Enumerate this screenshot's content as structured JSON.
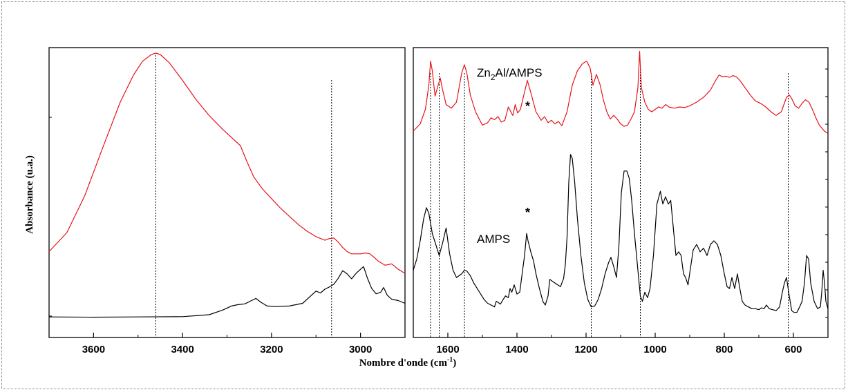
{
  "chart_data": [
    {
      "type": "line",
      "panel": "left",
      "xlim": [
        3700,
        2900
      ],
      "x_ticks": [
        3600,
        3400,
        3200,
        3000
      ],
      "ylabel": "Absorbance (u.a.)",
      "grid": false,
      "reference_lines_x": [
        3460,
        3065
      ],
      "series": [
        {
          "color": "#e8121a",
          "x": [
            3700,
            3660,
            3620,
            3580,
            3540,
            3510,
            3490,
            3470,
            3460,
            3450,
            3430,
            3400,
            3370,
            3340,
            3310,
            3290,
            3270,
            3255,
            3240,
            3220,
            3200,
            3180,
            3160,
            3140,
            3120,
            3100,
            3080,
            3070,
            3060,
            3050,
            3040,
            3030,
            3020,
            3010,
            3000,
            2990,
            2980,
            2970,
            2960,
            2945,
            2930,
            2915,
            2900
          ],
          "y": [
            0.27,
            0.34,
            0.475,
            0.65,
            0.82,
            0.92,
            0.97,
            0.995,
            1.0,
            0.995,
            0.965,
            0.9,
            0.83,
            0.77,
            0.72,
            0.69,
            0.66,
            0.6,
            0.545,
            0.5,
            0.465,
            0.43,
            0.4,
            0.37,
            0.345,
            0.325,
            0.312,
            0.318,
            0.32,
            0.305,
            0.285,
            0.27,
            0.262,
            0.262,
            0.262,
            0.265,
            0.263,
            0.25,
            0.235,
            0.22,
            0.225,
            0.205,
            0.19
          ]
        },
        {
          "color": "#000000",
          "x": [
            3700,
            3600,
            3500,
            3400,
            3340,
            3310,
            3290,
            3275,
            3260,
            3245,
            3235,
            3225,
            3210,
            3190,
            3160,
            3130,
            3110,
            3100,
            3090,
            3080,
            3070,
            3060,
            3050,
            3040,
            3030,
            3020,
            3010,
            3000,
            2993,
            2985,
            2975,
            2965,
            2955,
            2948,
            2940,
            2930,
            2915,
            2900
          ],
          "y": [
            0.03,
            0.029,
            0.03,
            0.031,
            0.038,
            0.055,
            0.07,
            0.075,
            0.078,
            0.09,
            0.098,
            0.085,
            0.07,
            0.068,
            0.07,
            0.08,
            0.11,
            0.125,
            0.118,
            0.132,
            0.14,
            0.15,
            0.172,
            0.2,
            0.188,
            0.17,
            0.19,
            0.205,
            0.215,
            0.175,
            0.135,
            0.115,
            0.12,
            0.138,
            0.11,
            0.095,
            0.09,
            0.08
          ]
        }
      ]
    },
    {
      "type": "line",
      "panel": "right",
      "xlim": [
        1700,
        500
      ],
      "x_ticks": [
        1600,
        1400,
        1200,
        1000,
        800,
        600
      ],
      "grid": false,
      "reference_lines_x": [
        1650,
        1625,
        1552,
        1185,
        1043,
        615
      ],
      "annotations": [
        {
          "label_parts": [
            "Zn",
            "2",
            "Al/AMPS"
          ],
          "sub_index": 1
        },
        {
          "label": "*",
          "at_x": 1370,
          "series": "Zn2Al/AMPS"
        },
        {
          "label": "AMPS"
        },
        {
          "label": "*",
          "at_x": 1370,
          "series": "AMPS"
        }
      ],
      "series": [
        {
          "name": "Zn2Al/AMPS",
          "color": "#e8121a",
          "x": [
            1700,
            1680,
            1665,
            1655,
            1650,
            1645,
            1637,
            1630,
            1622,
            1615,
            1605,
            1590,
            1575,
            1560,
            1552,
            1545,
            1535,
            1520,
            1500,
            1485,
            1475,
            1465,
            1455,
            1445,
            1435,
            1425,
            1412,
            1405,
            1398,
            1390,
            1380,
            1370,
            1360,
            1345,
            1330,
            1320,
            1310,
            1300,
            1290,
            1280,
            1270,
            1255,
            1240,
            1225,
            1210,
            1198,
            1188,
            1180,
            1170,
            1160,
            1150,
            1140,
            1130,
            1120,
            1110,
            1100,
            1090,
            1080,
            1070,
            1060,
            1050,
            1045,
            1040,
            1030,
            1020,
            1010,
            1000,
            990,
            980,
            970,
            960,
            945,
            930,
            915,
            900,
            880,
            860,
            840,
            825,
            815,
            805,
            795,
            785,
            775,
            765,
            755,
            740,
            725,
            710,
            695,
            680,
            665,
            650,
            635,
            620,
            612,
            605,
            595,
            585,
            575,
            565,
            555,
            545,
            535,
            525,
            510,
            500
          ],
          "y": [
            0.4,
            0.46,
            0.58,
            0.78,
            0.98,
            0.9,
            0.69,
            0.76,
            0.84,
            0.74,
            0.62,
            0.59,
            0.64,
            0.88,
            0.95,
            0.88,
            0.7,
            0.56,
            0.45,
            0.47,
            0.51,
            0.495,
            0.52,
            0.475,
            0.49,
            0.6,
            0.53,
            0.62,
            0.55,
            0.58,
            0.7,
            0.82,
            0.72,
            0.56,
            0.49,
            0.52,
            0.47,
            0.49,
            0.46,
            0.48,
            0.445,
            0.56,
            0.78,
            0.9,
            0.96,
            0.98,
            0.92,
            0.78,
            0.87,
            0.79,
            0.66,
            0.56,
            0.5,
            0.53,
            0.5,
            0.46,
            0.44,
            0.45,
            0.5,
            0.56,
            0.76,
            1.06,
            0.76,
            0.64,
            0.58,
            0.56,
            0.58,
            0.6,
            0.59,
            0.62,
            0.6,
            0.59,
            0.6,
            0.595,
            0.61,
            0.64,
            0.68,
            0.74,
            0.82,
            0.865,
            0.85,
            0.855,
            0.845,
            0.86,
            0.85,
            0.82,
            0.76,
            0.7,
            0.65,
            0.63,
            0.6,
            0.56,
            0.53,
            0.56,
            0.68,
            0.7,
            0.67,
            0.61,
            0.59,
            0.63,
            0.66,
            0.64,
            0.58,
            0.51,
            0.45,
            0.4,
            0.38
          ]
        },
        {
          "name": "AMPS",
          "color": "#000000",
          "x": [
            1700,
            1690,
            1680,
            1670,
            1662,
            1655,
            1645,
            1635,
            1625,
            1615,
            1605,
            1595,
            1585,
            1575,
            1560,
            1552,
            1545,
            1535,
            1525,
            1515,
            1505,
            1495,
            1485,
            1475,
            1465,
            1460,
            1455,
            1448,
            1440,
            1433,
            1425,
            1420,
            1415,
            1408,
            1400,
            1392,
            1385,
            1378,
            1372,
            1368,
            1360,
            1352,
            1345,
            1335,
            1325,
            1318,
            1310,
            1305,
            1298,
            1290,
            1282,
            1274,
            1265,
            1260,
            1255,
            1250,
            1245,
            1240,
            1233,
            1225,
            1215,
            1205,
            1195,
            1185,
            1175,
            1165,
            1155,
            1145,
            1135,
            1128,
            1120,
            1112,
            1105,
            1098,
            1090,
            1082,
            1075,
            1068,
            1060,
            1050,
            1043,
            1037,
            1030,
            1022,
            1015,
            1005,
            995,
            985,
            978,
            970,
            962,
            955,
            948,
            940,
            932,
            925,
            918,
            912,
            905,
            898,
            890,
            880,
            870,
            860,
            850,
            840,
            830,
            820,
            810,
            800,
            792,
            785,
            778,
            770,
            762,
            755,
            748,
            740,
            730,
            720,
            710,
            700,
            692,
            685,
            678,
            670,
            660,
            650,
            640,
            632,
            626,
            620,
            612,
            605,
            598,
            590,
            582,
            575,
            568,
            562,
            556,
            550,
            540,
            530,
            522,
            518,
            514,
            510,
            506,
            500
          ],
          "y": [
            0.22,
            0.28,
            0.38,
            0.5,
            0.56,
            0.53,
            0.42,
            0.36,
            0.3,
            0.37,
            0.45,
            0.31,
            0.22,
            0.18,
            0.2,
            0.22,
            0.215,
            0.19,
            0.15,
            0.12,
            0.09,
            0.06,
            0.04,
            0.03,
            0.02,
            0.05,
            0.045,
            0.035,
            0.06,
            0.08,
            0.07,
            0.12,
            0.1,
            0.14,
            0.09,
            0.1,
            0.2,
            0.3,
            0.42,
            0.38,
            0.32,
            0.27,
            0.2,
            0.12,
            0.05,
            0.03,
            0.08,
            0.17,
            0.16,
            0.15,
            0.14,
            0.13,
            0.175,
            0.25,
            0.4,
            0.7,
            0.85,
            0.83,
            0.7,
            0.5,
            0.3,
            0.15,
            0.06,
            0.02,
            0.025,
            0.06,
            0.12,
            0.2,
            0.26,
            0.29,
            0.24,
            0.18,
            0.35,
            0.64,
            0.76,
            0.76,
            0.72,
            0.6,
            0.42,
            0.22,
            0.08,
            0.05,
            0.1,
            0.07,
            0.12,
            0.3,
            0.58,
            0.65,
            0.58,
            0.62,
            0.58,
            0.6,
            0.46,
            0.3,
            0.32,
            0.3,
            0.2,
            0.18,
            0.14,
            0.23,
            0.33,
            0.36,
            0.32,
            0.34,
            0.3,
            0.36,
            0.38,
            0.36,
            0.3,
            0.2,
            0.13,
            0.12,
            0.18,
            0.12,
            0.2,
            0.12,
            0.05,
            0.03,
            0.02,
            0.01,
            0.01,
            0.005,
            0.015,
            0.01,
            0.03,
            0.01,
            0.005,
            0.0,
            0.02,
            0.1,
            0.15,
            0.18,
            0.08,
            0.0,
            -0.01,
            -0.01,
            0.02,
            0.05,
            0.15,
            0.3,
            0.28,
            0.15,
            0.05,
            0.01,
            0.02,
            0.1,
            0.22,
            0.15,
            0.05,
            0.01
          ]
        }
      ]
    }
  ],
  "shared": {
    "xlabel_main": "Nombre d'onde (cm",
    "xlabel_sup": "-1",
    "xlabel_end": ")",
    "ylabel": "Absorbance (u.a.)"
  }
}
